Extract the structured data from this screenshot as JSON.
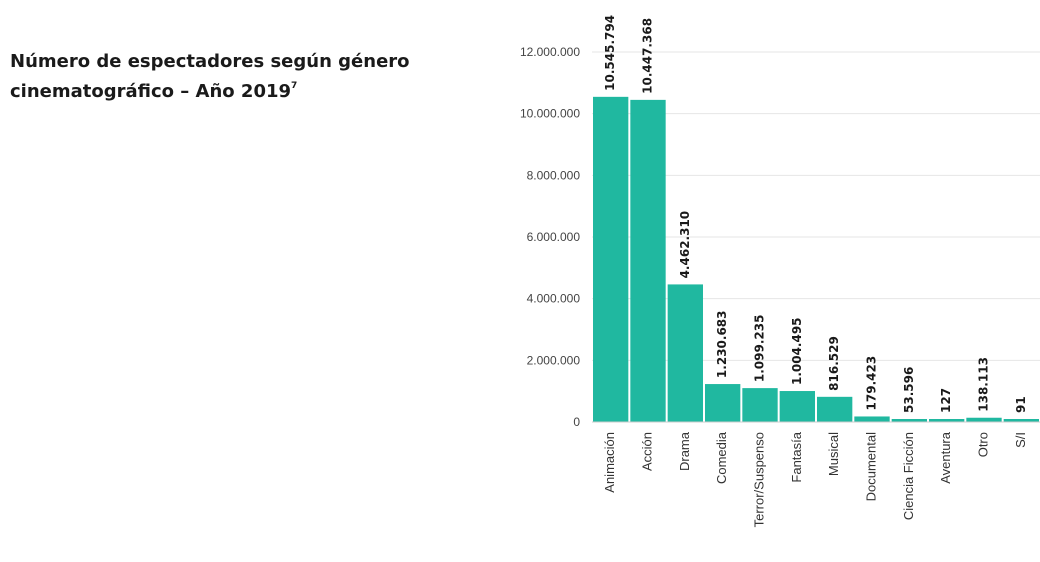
{
  "title": {
    "text": "Número de espectadores según género cinematográfico – Año 2019",
    "footnote_mark": "7"
  },
  "colors": {
    "bar": "#20B8A0",
    "grid": "#e6e6e6",
    "text": "#1a1a1a"
  },
  "chart_data": {
    "type": "bar",
    "categories": [
      "Animación",
      "Acción",
      "Drama",
      "Comedia",
      "Terror/Suspenso",
      "Fantasía",
      "Musical",
      "Documental",
      "Ciencia Ficción",
      "Aventura",
      "Otro",
      "S/I"
    ],
    "values": [
      10545794,
      10447368,
      4462310,
      1230683,
      1099235,
      1004495,
      816529,
      179423,
      53596,
      127,
      138113,
      91
    ],
    "value_labels": [
      "10.545.794",
      "10.447.368",
      "4.462.310",
      "1.230.683",
      "1.099.235",
      "1.004.495",
      "816.529",
      "179.423",
      "53.596",
      "127",
      "138.113",
      "91"
    ],
    "yticks": [
      0,
      2000000,
      4000000,
      6000000,
      8000000,
      10000000,
      12000000
    ],
    "ytick_labels": [
      "0",
      "2.000.000",
      "4.000.000",
      "6.000.000",
      "8.000.000",
      "10.000.000",
      "12.000.000"
    ],
    "ylim": [
      0,
      12000000
    ],
    "grid": true,
    "xlabel": "",
    "ylabel": ""
  }
}
